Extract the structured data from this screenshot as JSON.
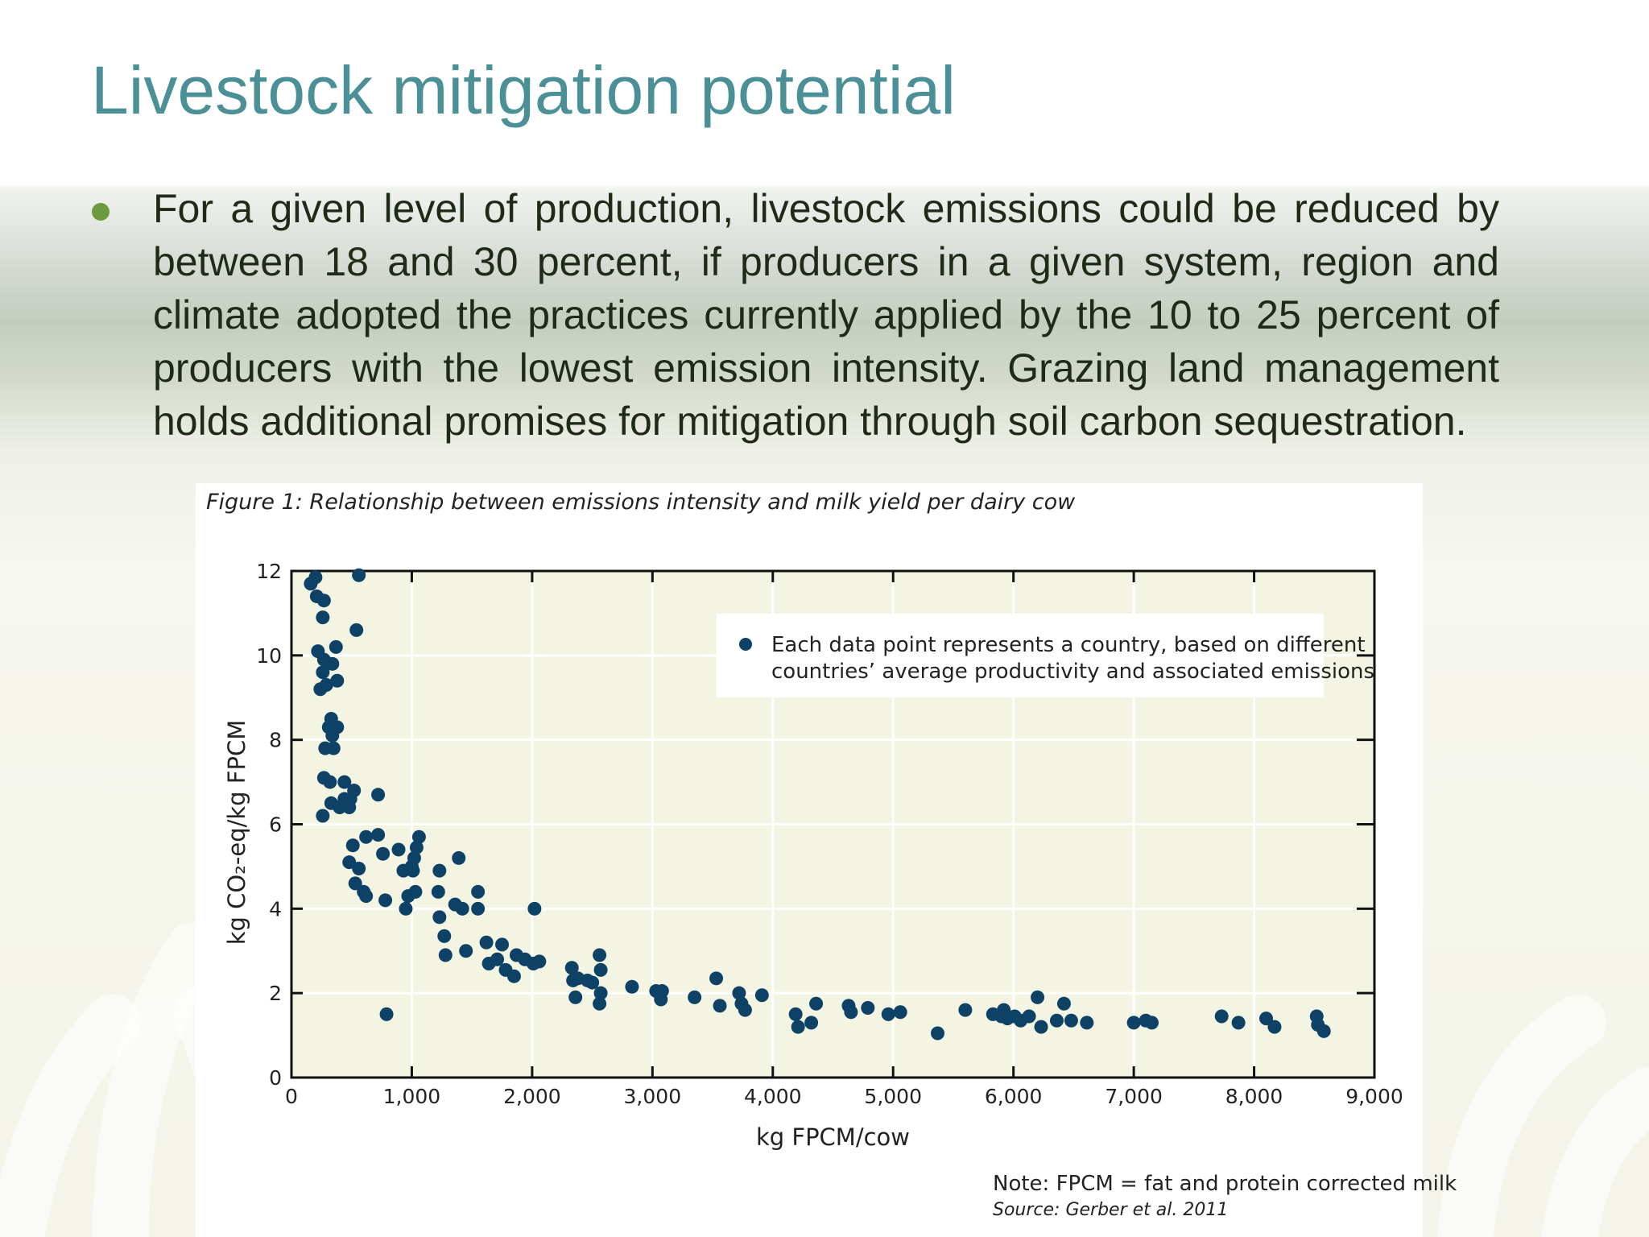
{
  "slide": {
    "title": "Livestock mitigation potential",
    "bullet": "For a given level of production, livestock emissions could be reduced by between 18 and 30 percent, if producers in a given system, region and climate adopted the practices currently applied by the 10 to 25 percent of producers with the lowest emission intensity.  Grazing land management holds additional promises for mitigation through soil carbon sequestration.",
    "colors": {
      "title": "#4a9096",
      "bullet_dot": "#6e9a3f",
      "text": "#1f2b18"
    }
  },
  "figure": {
    "caption": "Figure 1: Relationship between emissions intensity and milk yield per dairy cow",
    "note": "Note: FPCM = fat and protein corrected milk",
    "source": "Source: Gerber et al. 2011"
  },
  "chart_data": {
    "type": "scatter",
    "title": "Figure 1: Relationship between emissions intensity and milk yield per dairy cow",
    "xlabel": "kg FPCM/cow",
    "ylabel": "kg CO₂-eq/kg FPCM",
    "xlim": [
      0,
      9000
    ],
    "ylim": [
      0,
      12
    ],
    "xticks": [
      0,
      1000,
      2000,
      3000,
      4000,
      5000,
      6000,
      7000,
      8000,
      9000
    ],
    "xtick_labels": [
      "0",
      "1,000",
      "2,000",
      "3,000",
      "4,000",
      "5,000",
      "6,000",
      "7,000",
      "8,000",
      "9,000"
    ],
    "yticks": [
      0,
      2,
      4,
      6,
      8,
      10,
      12
    ],
    "ytick_labels": [
      "0",
      "2",
      "4",
      "6",
      "8",
      "10",
      "12"
    ],
    "grid": true,
    "legend": {
      "placement": "top-right",
      "lines": [
        "Each data point represents a country, based on different",
        "countries’ average productivity and associated emissions"
      ]
    },
    "colors": {
      "point": "#0d4266",
      "plot_bg": "#f3f4e1",
      "grid": "#ffffff"
    },
    "series": [
      {
        "points": [
          [
            160,
            11.7
          ],
          [
            200,
            11.85
          ],
          [
            210,
            11.4
          ],
          [
            270,
            11.3
          ],
          [
            260,
            10.9
          ],
          [
            560,
            11.9
          ],
          [
            540,
            10.6
          ],
          [
            220,
            10.1
          ],
          [
            270,
            9.9
          ],
          [
            260,
            9.6
          ],
          [
            340,
            9.8
          ],
          [
            370,
            10.2
          ],
          [
            240,
            9.2
          ],
          [
            290,
            9.3
          ],
          [
            380,
            9.4
          ],
          [
            330,
            8.5
          ],
          [
            310,
            8.3
          ],
          [
            380,
            8.3
          ],
          [
            340,
            8.1
          ],
          [
            280,
            7.8
          ],
          [
            350,
            7.8
          ],
          [
            270,
            7.1
          ],
          [
            320,
            7.0
          ],
          [
            440,
            7.0
          ],
          [
            260,
            6.2
          ],
          [
            330,
            6.5
          ],
          [
            400,
            6.4
          ],
          [
            440,
            6.6
          ],
          [
            490,
            6.6
          ],
          [
            520,
            6.8
          ],
          [
            480,
            6.4
          ],
          [
            720,
            6.7
          ],
          [
            510,
            5.5
          ],
          [
            620,
            5.7
          ],
          [
            720,
            5.75
          ],
          [
            480,
            5.1
          ],
          [
            560,
            4.95
          ],
          [
            760,
            5.3
          ],
          [
            890,
            5.4
          ],
          [
            930,
            4.9
          ],
          [
            1000,
            5.0
          ],
          [
            1020,
            5.2
          ],
          [
            1060,
            5.7
          ],
          [
            1040,
            5.45
          ],
          [
            1010,
            4.9
          ],
          [
            530,
            4.6
          ],
          [
            600,
            4.4
          ],
          [
            620,
            4.3
          ],
          [
            780,
            4.2
          ],
          [
            950,
            4.0
          ],
          [
            970,
            4.3
          ],
          [
            1030,
            4.4
          ],
          [
            1230,
            4.9
          ],
          [
            1390,
            5.2
          ],
          [
            1220,
            4.4
          ],
          [
            1360,
            4.1
          ],
          [
            1420,
            4.0
          ],
          [
            1550,
            4.4
          ],
          [
            1550,
            4.0
          ],
          [
            2020,
            4.0
          ],
          [
            1230,
            3.8
          ],
          [
            1270,
            3.35
          ],
          [
            1280,
            2.9
          ],
          [
            1450,
            3.0
          ],
          [
            1620,
            3.2
          ],
          [
            1750,
            3.15
          ],
          [
            1640,
            2.7
          ],
          [
            1710,
            2.8
          ],
          [
            1780,
            2.55
          ],
          [
            1850,
            2.4
          ],
          [
            1870,
            2.9
          ],
          [
            1940,
            2.8
          ],
          [
            2010,
            2.7
          ],
          [
            2060,
            2.75
          ],
          [
            2330,
            2.6
          ],
          [
            2340,
            2.3
          ],
          [
            2380,
            2.35
          ],
          [
            2460,
            2.3
          ],
          [
            2500,
            2.25
          ],
          [
            2560,
            2.9
          ],
          [
            2570,
            2.55
          ],
          [
            2570,
            2.0
          ],
          [
            2360,
            1.9
          ],
          [
            2560,
            1.75
          ],
          [
            2830,
            2.15
          ],
          [
            3030,
            2.05
          ],
          [
            3070,
            1.85
          ],
          [
            3080,
            2.05
          ],
          [
            3350,
            1.9
          ],
          [
            3530,
            2.35
          ],
          [
            3560,
            1.7
          ],
          [
            3720,
            2.0
          ],
          [
            3740,
            1.75
          ],
          [
            3770,
            1.6
          ],
          [
            3910,
            1.95
          ],
          [
            4190,
            1.5
          ],
          [
            4210,
            1.2
          ],
          [
            4320,
            1.3
          ],
          [
            4360,
            1.75
          ],
          [
            4630,
            1.7
          ],
          [
            4650,
            1.55
          ],
          [
            4790,
            1.65
          ],
          [
            4960,
            1.5
          ],
          [
            5060,
            1.55
          ],
          [
            5370,
            1.05
          ],
          [
            5600,
            1.6
          ],
          [
            5830,
            1.5
          ],
          [
            5900,
            1.45
          ],
          [
            5920,
            1.6
          ],
          [
            5950,
            1.4
          ],
          [
            6010,
            1.45
          ],
          [
            6060,
            1.35
          ],
          [
            6130,
            1.45
          ],
          [
            6200,
            1.9
          ],
          [
            6230,
            1.2
          ],
          [
            6360,
            1.35
          ],
          [
            6420,
            1.75
          ],
          [
            6480,
            1.35
          ],
          [
            6610,
            1.3
          ],
          [
            7000,
            1.3
          ],
          [
            7100,
            1.35
          ],
          [
            7150,
            1.3
          ],
          [
            7730,
            1.45
          ],
          [
            7870,
            1.3
          ],
          [
            8100,
            1.4
          ],
          [
            8170,
            1.2
          ],
          [
            8520,
            1.45
          ],
          [
            8530,
            1.25
          ],
          [
            8580,
            1.1
          ],
          [
            790,
            1.5
          ]
        ]
      }
    ]
  }
}
